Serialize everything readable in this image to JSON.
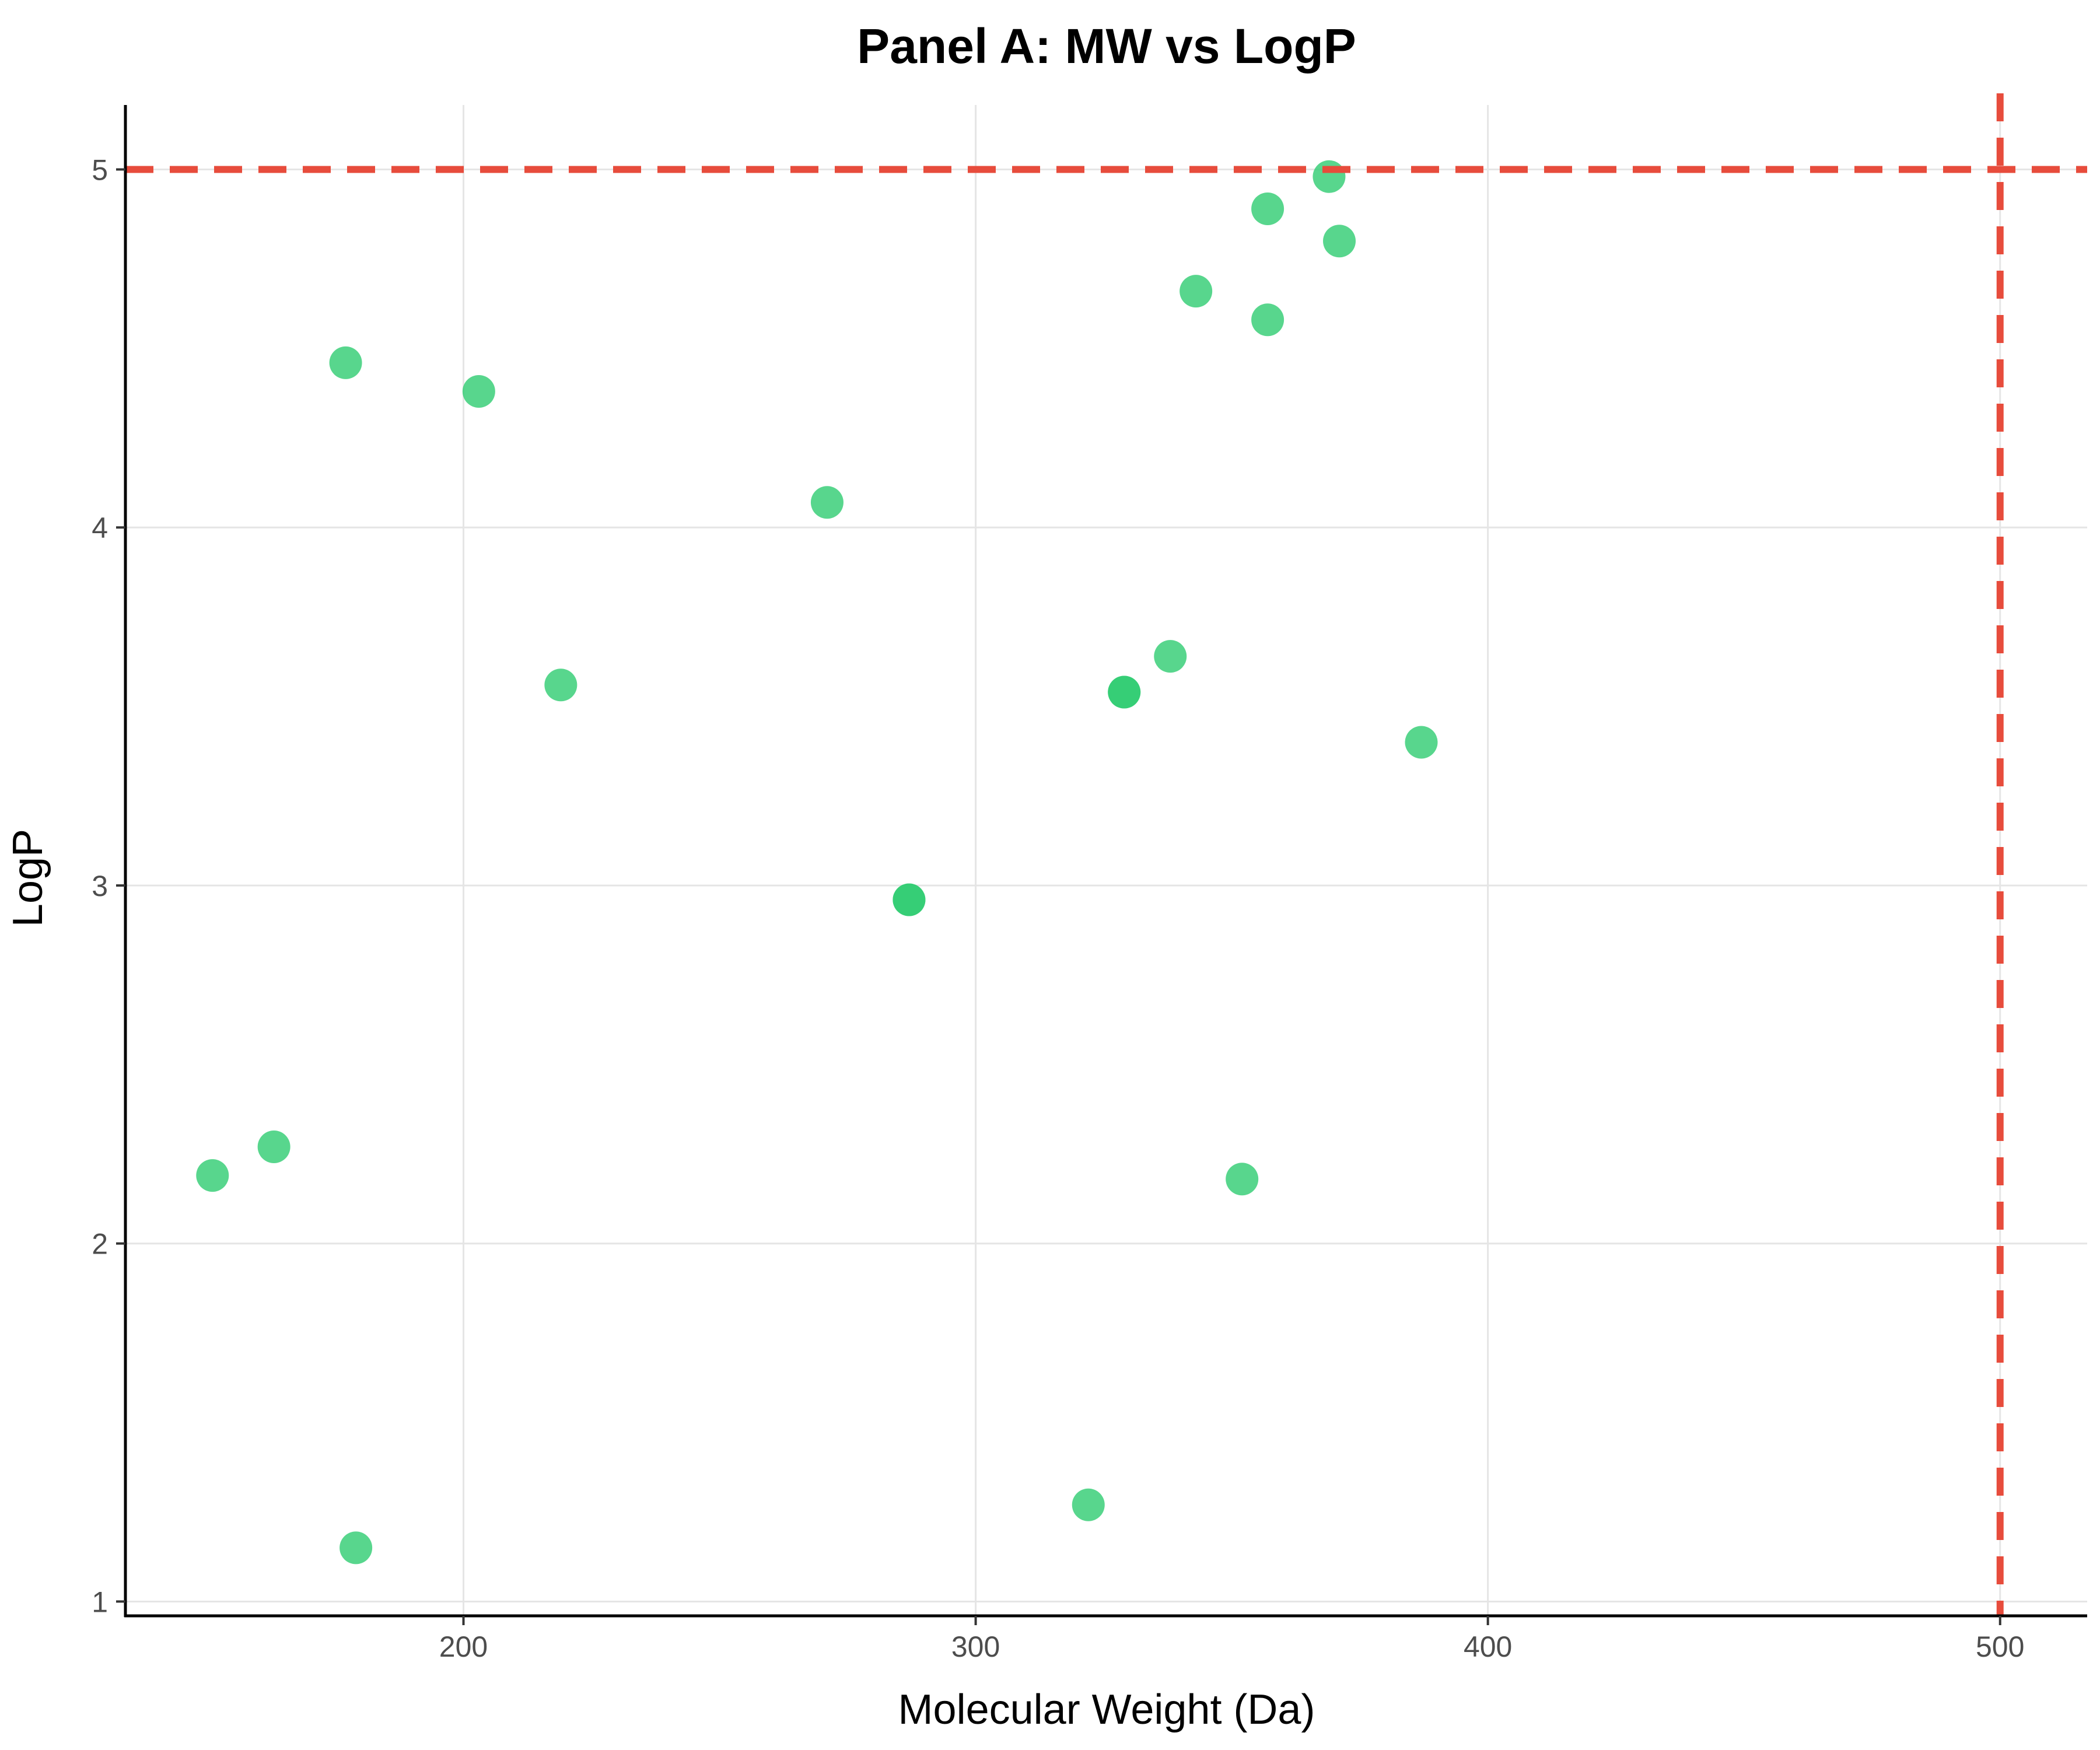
{
  "chart_data": {
    "type": "scatter",
    "title": "Panel A: MW vs LogP",
    "xlabel": "Molecular Weight (Da)",
    "ylabel": "LogP",
    "xlim": [
      134,
      517
    ],
    "ylim": [
      0.96,
      5.18
    ],
    "xticks": [
      200,
      300,
      400,
      500
    ],
    "yticks": [
      1,
      2,
      3,
      4,
      5
    ],
    "grid": true,
    "legend": "none",
    "point_color": "#2ecc71",
    "reference_color": "#e74c3c",
    "reference_lines": [
      {
        "axis": "x",
        "value": 500
      },
      {
        "axis": "y",
        "value": 5
      }
    ],
    "points": [
      {
        "x": 151,
        "y": 2.19
      },
      {
        "x": 163,
        "y": 2.27
      },
      {
        "x": 177,
        "y": 4.46
      },
      {
        "x": 179,
        "y": 1.15
      },
      {
        "x": 203,
        "y": 4.38
      },
      {
        "x": 219,
        "y": 3.56
      },
      {
        "x": 271,
        "y": 4.07
      },
      {
        "x": 287,
        "y": 2.96
      },
      {
        "x": 287,
        "y": 2.96
      },
      {
        "x": 322,
        "y": 1.27
      },
      {
        "x": 329,
        "y": 3.54
      },
      {
        "x": 329,
        "y": 3.54
      },
      {
        "x": 338,
        "y": 3.64
      },
      {
        "x": 343,
        "y": 4.66
      },
      {
        "x": 352,
        "y": 2.18
      },
      {
        "x": 357,
        "y": 4.89
      },
      {
        "x": 357,
        "y": 4.58
      },
      {
        "x": 369,
        "y": 4.98
      },
      {
        "x": 371,
        "y": 4.8
      },
      {
        "x": 387,
        "y": 3.4
      }
    ]
  }
}
